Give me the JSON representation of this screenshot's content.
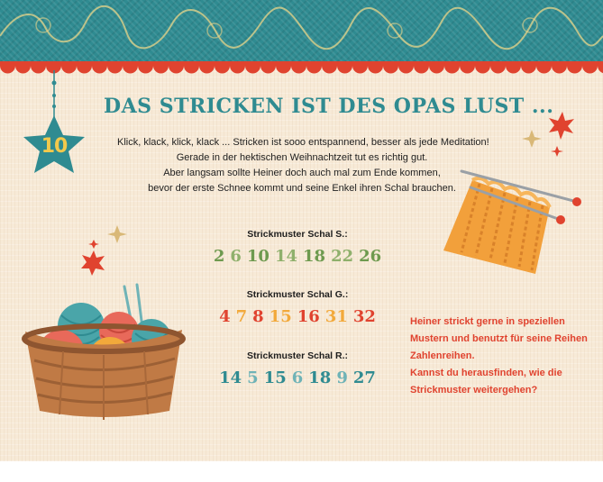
{
  "badge": {
    "number": "10"
  },
  "title": "DAS STRICKEN IST DES OPAS LUST ...",
  "intro": {
    "line1": "Klick, klack, klick, klack ... Stricken ist sooo entspannend, besser als jede Meditation!",
    "line2": "Gerade in der hektischen Weihnachtzeit tut es richtig gut.",
    "line3": "Aber langsam sollte Heiner doch auch mal zum Ende kommen,",
    "line4": "bevor der erste Schnee kommt und seine Enkel ihren Schal brauchen."
  },
  "patterns": [
    {
      "label": "Strickmuster Schal S.:",
      "values": [
        "2",
        "6",
        "10",
        "14",
        "18",
        "22",
        "26"
      ],
      "colors": [
        "#6e9a4f",
        "#8fb06c",
        "#6e9a4f",
        "#8fb06c",
        "#6e9a4f",
        "#8fb06c",
        "#6e9a4f"
      ]
    },
    {
      "label": "Strickmuster Schal G.:",
      "values": [
        "4",
        "7",
        "8",
        "15",
        "16",
        "31",
        "32"
      ],
      "colors": [
        "#e0432f",
        "#f2a93b",
        "#e0432f",
        "#f2a93b",
        "#e0432f",
        "#f2a93b",
        "#e0432f"
      ]
    },
    {
      "label": "Strickmuster Schal R.:",
      "values": [
        "14",
        "5",
        "15",
        "6",
        "18",
        "9",
        "27"
      ],
      "colors": [
        "#2f8b91",
        "#6fb3b7",
        "#2f8b91",
        "#6fb3b7",
        "#2f8b91",
        "#6fb3b7",
        "#2f8b91"
      ]
    }
  ],
  "side_text": {
    "line1": "Heiner strickt gerne in speziellen",
    "line2": "Mustern und benutzt für seine Reihen",
    "line3": "Zahlenreihen.",
    "line4": "Kannst du herausfinden, wie die",
    "line5": "Strickmuster weitergehen?"
  },
  "colors": {
    "teal": "#2f8b91",
    "red": "#e0432f",
    "gold": "#f2c94c",
    "orange": "#f2a03b",
    "paper": "#f7ead7",
    "basket": "#c07a45"
  },
  "icons": {
    "badge": "star-ornament-icon",
    "yarn": "yarn-basket-icon",
    "knitting": "knitting-needles-icon"
  }
}
